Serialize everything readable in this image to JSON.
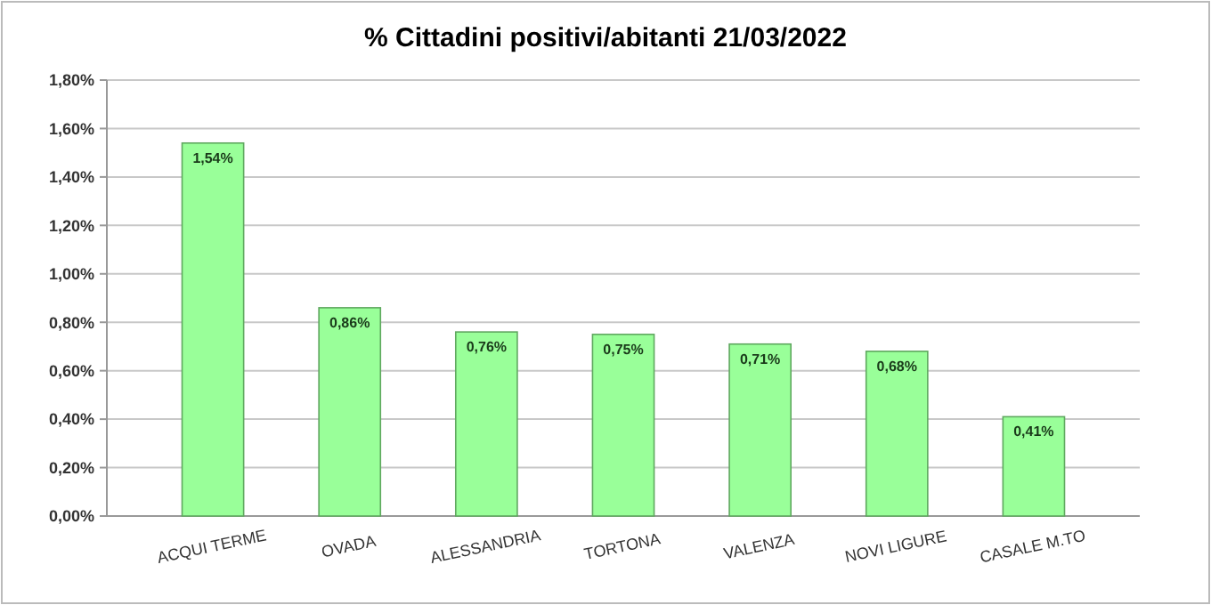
{
  "chart_data": {
    "type": "bar",
    "title": "% Cittadini positivi/abitanti 21/03/2022",
    "categories": [
      "ACQUI TERME",
      "OVADA",
      "ALESSANDRIA",
      "TORTONA",
      "VALENZA",
      "NOVI LIGURE",
      "CASALE M.TO"
    ],
    "values": [
      1.54,
      0.86,
      0.76,
      0.75,
      0.71,
      0.68,
      0.41
    ],
    "value_labels": [
      "1,54%",
      "0,86%",
      "0,76%",
      "0,75%",
      "0,71%",
      "0,68%",
      "0,41%"
    ],
    "color": "#99ff99",
    "ylim": [
      0,
      1.8
    ],
    "yticks": [
      {
        "value": 0,
        "label": "0,00%"
      },
      {
        "value": 0.2,
        "label": "0,20%"
      },
      {
        "value": 0.4,
        "label": "0,40%"
      },
      {
        "value": 0.6,
        "label": "0,60%"
      },
      {
        "value": 0.8,
        "label": "0,80%"
      },
      {
        "value": 1,
        "label": "1,00%"
      },
      {
        "value": 1.2,
        "label": "1,20%"
      },
      {
        "value": 1.4,
        "label": "1,40%"
      },
      {
        "value": 1.6,
        "label": "1,60%"
      },
      {
        "value": 1.8,
        "label": "1,80%"
      }
    ],
    "grid": "y"
  }
}
